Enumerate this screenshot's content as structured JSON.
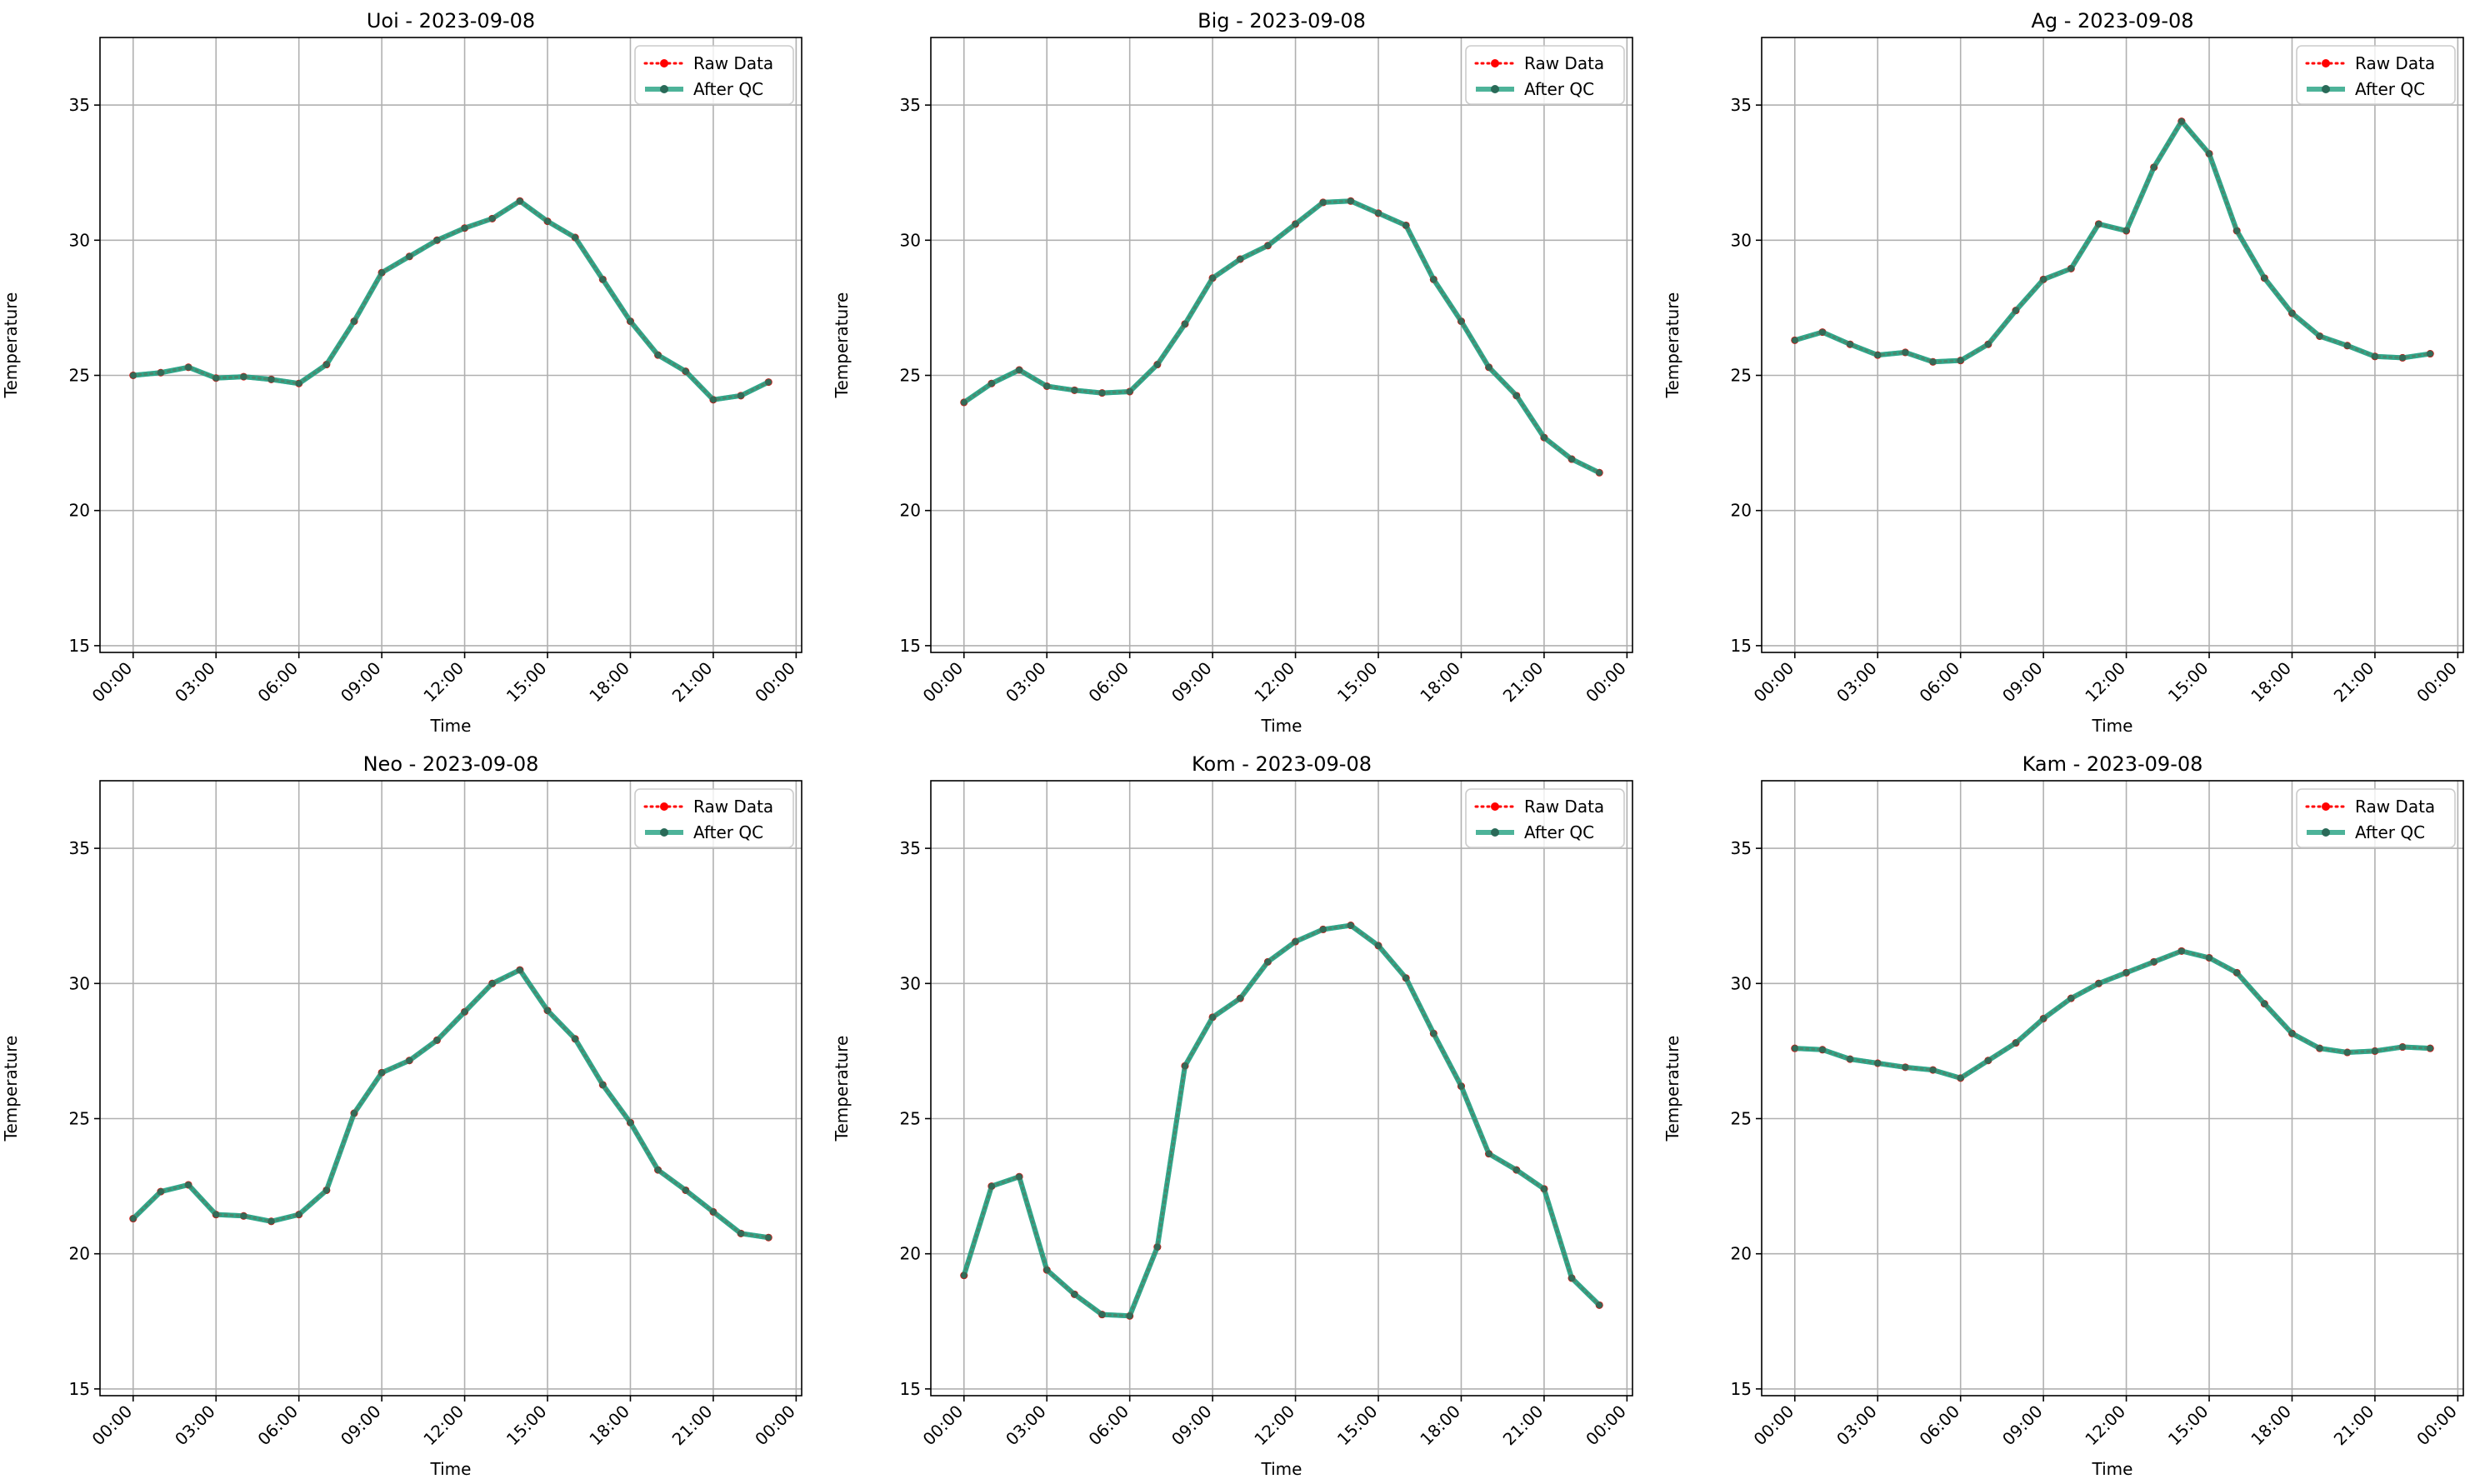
{
  "chart_data": [
    {
      "type": "line",
      "title": "Uoi - 2023-09-08",
      "xlabel": "Time",
      "ylabel": "Temperature",
      "x": [
        "00:00",
        "01:00",
        "02:00",
        "03:00",
        "04:00",
        "05:00",
        "06:00",
        "07:00",
        "08:00",
        "09:00",
        "10:00",
        "11:00",
        "12:00",
        "13:00",
        "14:00",
        "15:00",
        "16:00",
        "17:00",
        "18:00",
        "19:00",
        "20:00",
        "21:00",
        "22:00",
        "23:00"
      ],
      "x_ticks": [
        "00:00",
        "03:00",
        "06:00",
        "09:00",
        "12:00",
        "15:00",
        "18:00",
        "21:00",
        "00:00"
      ],
      "xlim_hours": [
        -1.2,
        24.2
      ],
      "ylim": [
        14.75,
        37.5
      ],
      "y_ticks": [
        15,
        20,
        25,
        30,
        35
      ],
      "grid": true,
      "legend": "top-right",
      "series": [
        {
          "name": "Raw Data",
          "color": "#ff0000",
          "style": "dotted",
          "values": [
            25.0,
            25.1,
            25.3,
            24.9,
            24.95,
            24.85,
            24.7,
            25.4,
            27.0,
            28.8,
            29.4,
            30.0,
            30.45,
            30.8,
            31.45,
            30.7,
            30.1,
            28.55,
            27.0,
            25.75,
            25.15,
            24.1,
            24.25,
            24.75
          ]
        },
        {
          "name": "After QC",
          "color": "#20a080",
          "style": "solid",
          "values": [
            25.0,
            25.1,
            25.3,
            24.9,
            24.95,
            24.85,
            24.7,
            25.4,
            27.0,
            28.8,
            29.4,
            30.0,
            30.45,
            30.8,
            31.45,
            30.7,
            30.1,
            28.55,
            27.0,
            25.75,
            25.15,
            24.1,
            24.25,
            24.75
          ]
        }
      ]
    },
    {
      "type": "line",
      "title": "Big - 2023-09-08",
      "xlabel": "Time",
      "ylabel": "Temperature",
      "x": [
        "00:00",
        "01:00",
        "02:00",
        "03:00",
        "04:00",
        "05:00",
        "06:00",
        "07:00",
        "08:00",
        "09:00",
        "10:00",
        "11:00",
        "12:00",
        "13:00",
        "14:00",
        "15:00",
        "16:00",
        "17:00",
        "18:00",
        "19:00",
        "20:00",
        "21:00",
        "22:00",
        "23:00"
      ],
      "x_ticks": [
        "00:00",
        "03:00",
        "06:00",
        "09:00",
        "12:00",
        "15:00",
        "18:00",
        "21:00",
        "00:00"
      ],
      "xlim_hours": [
        -1.2,
        24.2
      ],
      "ylim": [
        14.75,
        37.5
      ],
      "y_ticks": [
        15,
        20,
        25,
        30,
        35
      ],
      "grid": true,
      "legend": "top-right",
      "series": [
        {
          "name": "Raw Data",
          "color": "#ff0000",
          "style": "dotted",
          "values": [
            24.0,
            24.7,
            25.2,
            24.6,
            24.45,
            24.35,
            24.4,
            25.4,
            26.9,
            28.6,
            29.3,
            29.8,
            30.6,
            31.4,
            31.45,
            31.0,
            30.55,
            28.55,
            27.0,
            25.3,
            24.25,
            22.7,
            21.9,
            21.4
          ]
        },
        {
          "name": "After QC",
          "color": "#20a080",
          "style": "solid",
          "values": [
            24.0,
            24.7,
            25.2,
            24.6,
            24.45,
            24.35,
            24.4,
            25.4,
            26.9,
            28.6,
            29.3,
            29.8,
            30.6,
            31.4,
            31.45,
            31.0,
            30.55,
            28.55,
            27.0,
            25.3,
            24.25,
            22.7,
            21.9,
            21.4
          ]
        }
      ]
    },
    {
      "type": "line",
      "title": "Ag - 2023-09-08",
      "xlabel": "Time",
      "ylabel": "Temperature",
      "x": [
        "00:00",
        "01:00",
        "02:00",
        "03:00",
        "04:00",
        "05:00",
        "06:00",
        "07:00",
        "08:00",
        "09:00",
        "10:00",
        "11:00",
        "12:00",
        "13:00",
        "14:00",
        "15:00",
        "16:00",
        "17:00",
        "18:00",
        "19:00",
        "20:00",
        "21:00",
        "22:00",
        "23:00"
      ],
      "x_ticks": [
        "00:00",
        "03:00",
        "06:00",
        "09:00",
        "12:00",
        "15:00",
        "18:00",
        "21:00",
        "00:00"
      ],
      "xlim_hours": [
        -1.2,
        24.2
      ],
      "ylim": [
        14.75,
        37.5
      ],
      "y_ticks": [
        15,
        20,
        25,
        30,
        35
      ],
      "grid": true,
      "legend": "top-right",
      "series": [
        {
          "name": "Raw Data",
          "color": "#ff0000",
          "style": "dotted",
          "values": [
            26.3,
            26.6,
            26.15,
            25.75,
            25.85,
            25.5,
            25.55,
            26.15,
            27.4,
            28.55,
            28.95,
            30.6,
            30.35,
            32.7,
            34.4,
            33.2,
            30.35,
            28.6,
            27.3,
            26.45,
            26.1,
            25.7,
            25.65,
            25.8
          ]
        },
        {
          "name": "After QC",
          "color": "#20a080",
          "style": "solid",
          "values": [
            26.3,
            26.6,
            26.15,
            25.75,
            25.85,
            25.5,
            25.55,
            26.15,
            27.4,
            28.55,
            28.95,
            30.6,
            30.35,
            32.7,
            34.4,
            33.2,
            30.35,
            28.6,
            27.3,
            26.45,
            26.1,
            25.7,
            25.65,
            25.8
          ]
        }
      ]
    },
    {
      "type": "line",
      "title": "Neo - 2023-09-08",
      "xlabel": "Time",
      "ylabel": "Temperature",
      "x": [
        "00:00",
        "01:00",
        "02:00",
        "03:00",
        "04:00",
        "05:00",
        "06:00",
        "07:00",
        "08:00",
        "09:00",
        "10:00",
        "11:00",
        "12:00",
        "13:00",
        "14:00",
        "15:00",
        "16:00",
        "17:00",
        "18:00",
        "19:00",
        "20:00",
        "21:00",
        "22:00",
        "23:00"
      ],
      "x_ticks": [
        "00:00",
        "03:00",
        "06:00",
        "09:00",
        "12:00",
        "15:00",
        "18:00",
        "21:00",
        "00:00"
      ],
      "xlim_hours": [
        -1.2,
        24.2
      ],
      "ylim": [
        14.75,
        37.5
      ],
      "y_ticks": [
        15,
        20,
        25,
        30,
        35
      ],
      "grid": true,
      "legend": "top-right",
      "series": [
        {
          "name": "Raw Data",
          "color": "#ff0000",
          "style": "dotted",
          "values": [
            21.3,
            22.3,
            22.55,
            21.45,
            21.4,
            21.2,
            21.45,
            22.35,
            25.2,
            26.7,
            27.15,
            27.9,
            28.95,
            30.0,
            30.5,
            29.0,
            27.95,
            26.25,
            24.85,
            23.1,
            22.35,
            21.55,
            20.75,
            20.6
          ]
        },
        {
          "name": "After QC",
          "color": "#20a080",
          "style": "solid",
          "values": [
            21.3,
            22.3,
            22.55,
            21.45,
            21.4,
            21.2,
            21.45,
            22.35,
            25.2,
            26.7,
            27.15,
            27.9,
            28.95,
            30.0,
            30.5,
            29.0,
            27.95,
            26.25,
            24.85,
            23.1,
            22.35,
            21.55,
            20.75,
            20.6
          ]
        }
      ]
    },
    {
      "type": "line",
      "title": "Kom - 2023-09-08",
      "xlabel": "Time",
      "ylabel": "Temperature",
      "x": [
        "00:00",
        "01:00",
        "02:00",
        "03:00",
        "04:00",
        "05:00",
        "06:00",
        "07:00",
        "08:00",
        "09:00",
        "10:00",
        "11:00",
        "12:00",
        "13:00",
        "14:00",
        "15:00",
        "16:00",
        "17:00",
        "18:00",
        "19:00",
        "20:00",
        "21:00",
        "22:00",
        "23:00"
      ],
      "x_ticks": [
        "00:00",
        "03:00",
        "06:00",
        "09:00",
        "12:00",
        "15:00",
        "18:00",
        "21:00",
        "00:00"
      ],
      "xlim_hours": [
        -1.2,
        24.2
      ],
      "ylim": [
        14.75,
        37.5
      ],
      "y_ticks": [
        15,
        20,
        25,
        30,
        35
      ],
      "grid": true,
      "legend": "top-right",
      "series": [
        {
          "name": "Raw Data",
          "color": "#ff0000",
          "style": "dotted",
          "values": [
            19.2,
            22.5,
            22.85,
            19.4,
            18.5,
            17.75,
            17.7,
            20.25,
            26.95,
            28.75,
            29.45,
            30.8,
            31.55,
            32.0,
            32.15,
            31.4,
            30.2,
            28.15,
            26.2,
            23.7,
            23.1,
            22.4,
            19.1,
            18.1
          ]
        },
        {
          "name": "After QC",
          "color": "#20a080",
          "style": "solid",
          "values": [
            19.2,
            22.5,
            22.85,
            19.4,
            18.5,
            17.75,
            17.7,
            20.25,
            26.95,
            28.75,
            29.45,
            30.8,
            31.55,
            32.0,
            32.15,
            31.4,
            30.2,
            28.15,
            26.2,
            23.7,
            23.1,
            22.4,
            19.1,
            18.1
          ]
        }
      ]
    },
    {
      "type": "line",
      "title": "Kam - 2023-09-08",
      "xlabel": "Time",
      "ylabel": "Temperature",
      "x": [
        "00:00",
        "01:00",
        "02:00",
        "03:00",
        "04:00",
        "05:00",
        "06:00",
        "07:00",
        "08:00",
        "09:00",
        "10:00",
        "11:00",
        "12:00",
        "13:00",
        "14:00",
        "15:00",
        "16:00",
        "17:00",
        "18:00",
        "19:00",
        "20:00",
        "21:00",
        "22:00",
        "23:00"
      ],
      "x_ticks": [
        "00:00",
        "03:00",
        "06:00",
        "09:00",
        "12:00",
        "15:00",
        "18:00",
        "21:00",
        "00:00"
      ],
      "xlim_hours": [
        -1.2,
        24.2
      ],
      "ylim": [
        14.75,
        37.5
      ],
      "y_ticks": [
        15,
        20,
        25,
        30,
        35
      ],
      "grid": true,
      "legend": "top-right",
      "series": [
        {
          "name": "Raw Data",
          "color": "#ff0000",
          "style": "dotted",
          "values": [
            27.6,
            27.55,
            27.2,
            27.05,
            26.9,
            26.8,
            26.5,
            27.15,
            27.8,
            28.7,
            29.45,
            30.0,
            30.4,
            30.8,
            31.2,
            30.95,
            30.4,
            29.25,
            28.15,
            27.6,
            27.45,
            27.5,
            27.65,
            27.6
          ]
        },
        {
          "name": "After QC",
          "color": "#20a080",
          "style": "solid",
          "values": [
            27.6,
            27.55,
            27.2,
            27.05,
            26.9,
            26.8,
            26.5,
            27.15,
            27.8,
            28.7,
            29.45,
            30.0,
            30.4,
            30.8,
            31.2,
            30.95,
            30.4,
            29.25,
            28.15,
            27.6,
            27.45,
            27.5,
            27.65,
            27.6
          ]
        }
      ]
    }
  ]
}
